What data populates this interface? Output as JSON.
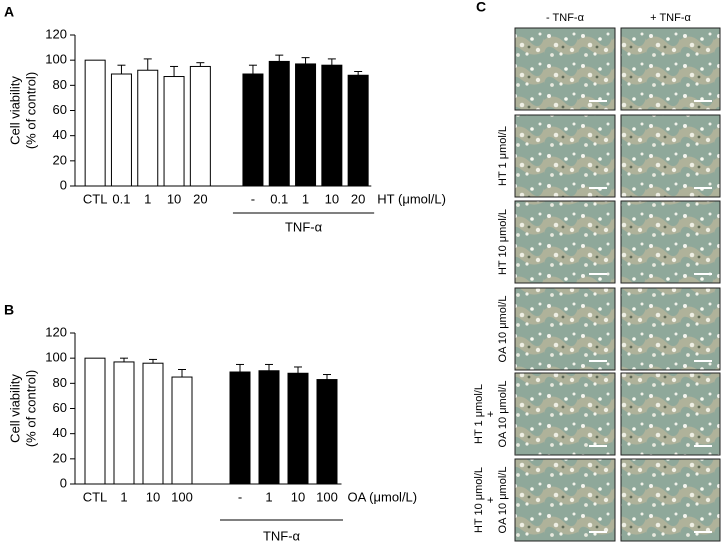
{
  "chart_data": [
    {
      "type": "bar",
      "panel_label": "A",
      "ylabel": [
        "Cell viability",
        "(% of control)"
      ],
      "xlabel": "HT (μmol/L)",
      "group_label": "TNF-α",
      "categories": [
        "CTL",
        "0.1",
        "1",
        "10",
        "20",
        "-",
        "0.1",
        "1",
        "10",
        "20"
      ],
      "values": [
        100,
        89,
        92,
        87,
        95,
        89,
        99,
        97,
        96,
        88
      ],
      "errors": [
        null,
        7,
        9,
        8,
        3,
        7,
        5,
        5,
        5,
        3
      ],
      "colors": [
        "#ffffff",
        "#ffffff",
        "#ffffff",
        "#ffffff",
        "#ffffff",
        "#000000",
        "#000000",
        "#000000",
        "#000000",
        "#000000"
      ],
      "ylim": [
        0,
        120
      ],
      "yticks": [
        0,
        20,
        40,
        60,
        80,
        100,
        120
      ]
    },
    {
      "type": "bar",
      "panel_label": "B",
      "ylabel": [
        "Cell viability",
        "(% of control)"
      ],
      "xlabel": "OA (μmol/L)",
      "group_label": "TNF-α",
      "categories": [
        "CTL",
        "1",
        "10",
        "100",
        "-",
        "1",
        "10",
        "100"
      ],
      "values": [
        100,
        97,
        96,
        85,
        89,
        90,
        88,
        83
      ],
      "errors": [
        null,
        3,
        3,
        6,
        6,
        5,
        5,
        4
      ],
      "colors": [
        "#ffffff",
        "#ffffff",
        "#ffffff",
        "#ffffff",
        "#000000",
        "#000000",
        "#000000",
        "#000000"
      ],
      "ylim": [
        0,
        120
      ],
      "yticks": [
        0,
        20,
        40,
        60,
        80,
        100,
        120
      ]
    }
  ],
  "panel_c": {
    "label": "C",
    "columns": [
      "- TNF-α",
      "+ TNF-α"
    ],
    "rows": [
      [],
      [
        "HT 1 μmol/L"
      ],
      [
        "HT 10 μmol/L"
      ],
      [
        "OA 10 μmol/L"
      ],
      [
        "HT 1 μmol/L",
        "+",
        "OA 10 μmol/L"
      ],
      [
        "HT 10 μmol/L",
        "+",
        "OA 10 μmol/L"
      ]
    ]
  }
}
